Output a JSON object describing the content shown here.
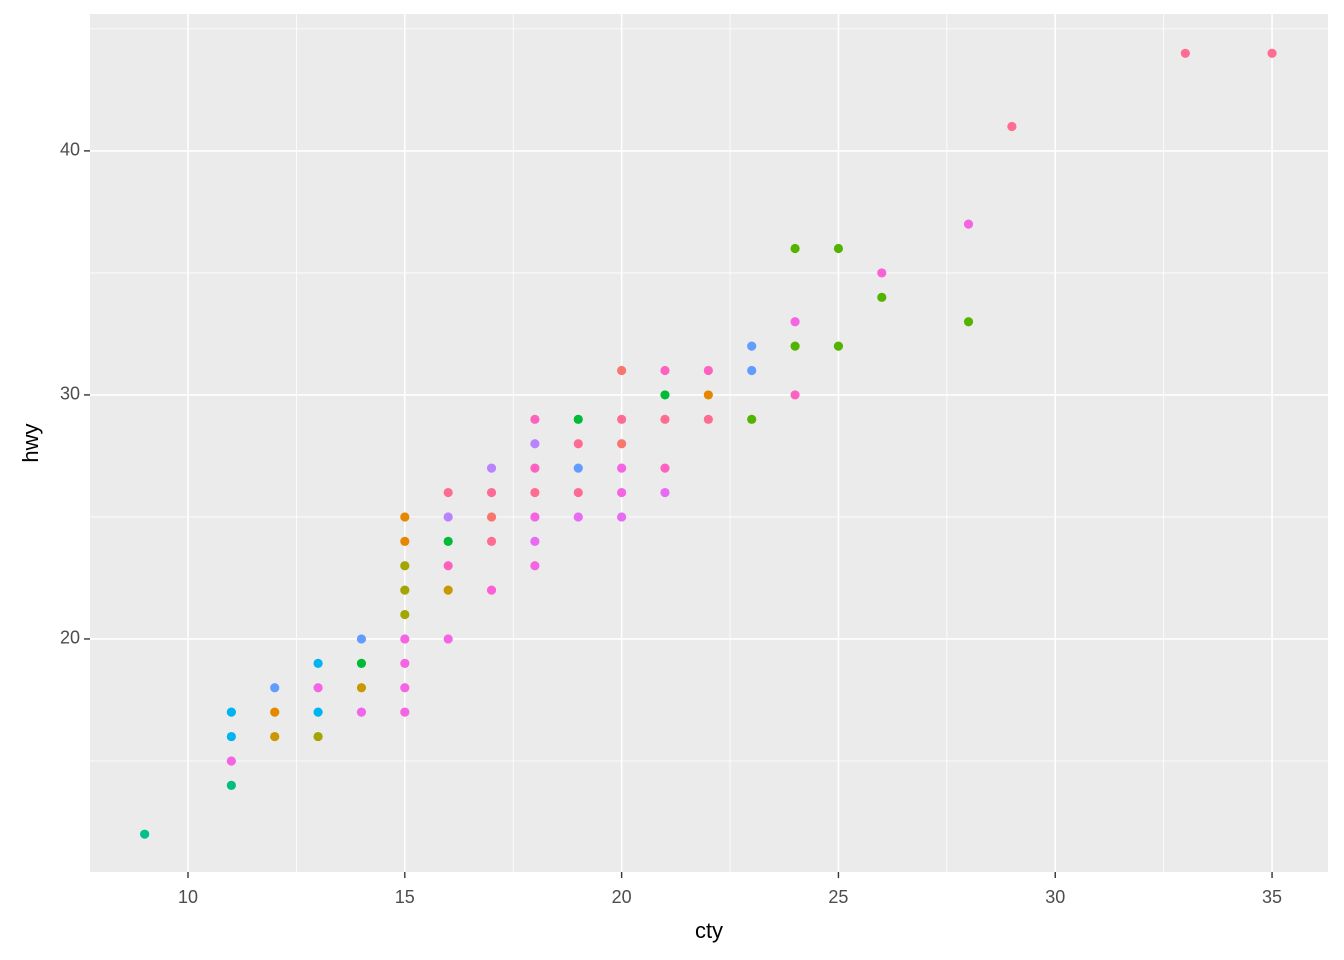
{
  "chart_data": {
    "type": "scatter",
    "x_label": "cty",
    "y_label": "hwy",
    "x": [
      9,
      11,
      11,
      11,
      11,
      12,
      12,
      12,
      13,
      13,
      13,
      13,
      14,
      14,
      14,
      14,
      15,
      15,
      15,
      15,
      15,
      15,
      15,
      15,
      15,
      16,
      16,
      16,
      16,
      16,
      16,
      17,
      17,
      17,
      17,
      17,
      18,
      18,
      18,
      18,
      18,
      18,
      18,
      19,
      19,
      19,
      19,
      19,
      20,
      20,
      20,
      20,
      20,
      20,
      21,
      21,
      21,
      21,
      21,
      22,
      22,
      22,
      23,
      23,
      23,
      24,
      24,
      24,
      24,
      25,
      25,
      26,
      26,
      28,
      28,
      29,
      33,
      35
    ],
    "values": [
      12,
      17,
      16,
      15,
      14,
      18,
      17,
      16,
      19,
      18,
      17,
      16,
      20,
      19,
      18,
      17,
      25,
      24,
      23,
      22,
      21,
      20,
      19,
      18,
      17,
      26,
      25,
      24,
      23,
      22,
      20,
      27,
      26,
      25,
      24,
      22,
      29,
      28,
      27,
      26,
      25,
      24,
      23,
      29,
      28,
      27,
      26,
      25,
      31,
      29,
      28,
      27,
      26,
      25,
      31,
      30,
      29,
      27,
      26,
      31,
      30,
      29,
      32,
      31,
      29,
      36,
      33,
      32,
      30,
      36,
      32,
      35,
      34,
      37,
      33,
      41,
      44,
      44
    ],
    "colors": [
      "#00C08B",
      "#00B4F0",
      "#00B4F0",
      "#F564E3",
      "#00BF7D",
      "#619CFF",
      "#E58700",
      "#C99800",
      "#00B4F0",
      "#F564E3",
      "#00B4F0",
      "#A3A500",
      "#619CFF",
      "#00BA38",
      "#C99800",
      "#F066EA",
      "#E58700",
      "#E58700",
      "#A3A500",
      "#A3A500",
      "#A3A500",
      "#F564E3",
      "#F564E3",
      "#F564E3",
      "#F564E3",
      "#FF6C91",
      "#B983FF",
      "#00BA38",
      "#FF62BC",
      "#C99800",
      "#F564E3",
      "#B983FF",
      "#FF6A98",
      "#F8766D",
      "#FF6C91",
      "#FB61D7",
      "#FF62BC",
      "#B983FF",
      "#FF61C3",
      "#FF6C91",
      "#F564E3",
      "#E76BF3",
      "#F564E3",
      "#00BA38",
      "#FF6C91",
      "#619CFF",
      "#FF6C91",
      "#E76BF3",
      "#F8766D",
      "#FF6C91",
      "#F8766D",
      "#F564E3",
      "#F564E3",
      "#E76BF3",
      "#FF61C3",
      "#00BA38",
      "#FF6C91",
      "#FF61C3",
      "#E76BF3",
      "#FF61C3",
      "#E58700",
      "#FF6C91",
      "#619CFF",
      "#619CFF",
      "#53B400",
      "#53B400",
      "#F564E3",
      "#53B400",
      "#FF61C3",
      "#53B400",
      "#53B400",
      "#FB61D7",
      "#53B400",
      "#F564E3",
      "#53B400",
      "#FF6C91",
      "#FF6C91",
      "#FF6C91"
    ],
    "xlim": [
      7.74,
      36.29
    ],
    "ylim": [
      10.45,
      45.61
    ],
    "xticks": [
      10,
      15,
      20,
      25,
      30,
      35
    ],
    "yticks": [
      20,
      30,
      40
    ],
    "x_minor_grid": [
      12.5,
      17.5,
      22.5,
      27.5,
      32.5
    ],
    "y_minor_grid": [
      15,
      25,
      35,
      45
    ],
    "grid": true
  }
}
